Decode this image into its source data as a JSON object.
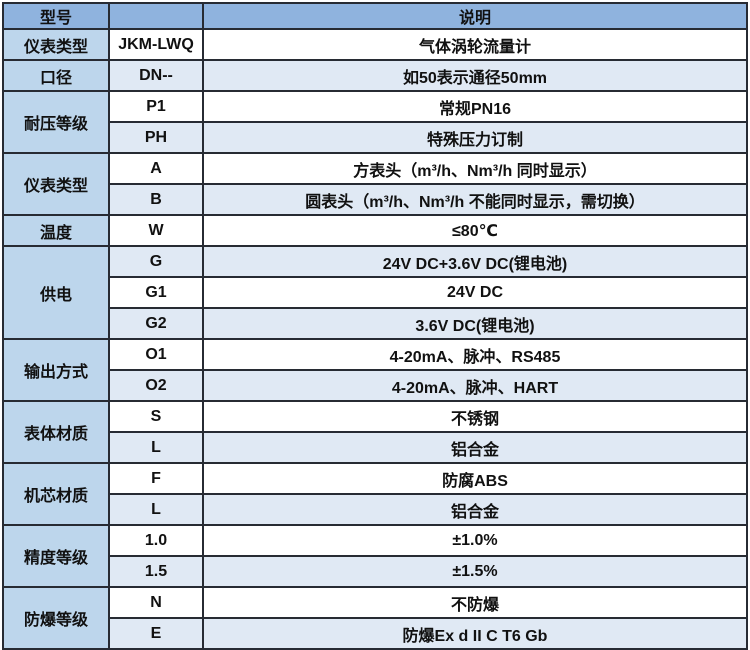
{
  "colors": {
    "header_bg": "#8FB3DE",
    "category_bg": "#BDD6EC",
    "row_even_bg": "#E0E9F4",
    "row_odd_bg": "#FFFFFF",
    "border": "#272B33",
    "text": "#111111"
  },
  "table": {
    "header": {
      "model": "型号",
      "blank": "",
      "description": "说明"
    },
    "rows": [
      {
        "cat": "仪表类型",
        "span": 1,
        "code": "JKM-LWQ",
        "desc": "气体涡轮流量计"
      },
      {
        "cat": "口径",
        "span": 1,
        "code": "DN--",
        "desc": "如50表示通径50mm"
      },
      {
        "cat": "耐压等级",
        "span": 2,
        "code": "P1",
        "desc": "常规PN16"
      },
      {
        "code": "PH",
        "desc": "特殊压力订制"
      },
      {
        "cat": "仪表类型",
        "span": 2,
        "code": "A",
        "desc": "方表头（m³/h、Nm³/h 同时显示）"
      },
      {
        "code": "B",
        "desc": "圆表头（m³/h、Nm³/h 不能同时显示，需切换）"
      },
      {
        "cat": "温度",
        "span": 1,
        "code": "W",
        "desc": "≤80℃"
      },
      {
        "cat": "供电",
        "span": 3,
        "code": "G",
        "desc": "24V DC+3.6V DC(锂电池)"
      },
      {
        "code": "G1",
        "desc": "24V DC"
      },
      {
        "code": "G2",
        "desc": "3.6V DC(锂电池)"
      },
      {
        "cat": "输出方式",
        "span": 2,
        "code": "O1",
        "desc": "4-20mA、脉冲、RS485"
      },
      {
        "code": "O2",
        "desc": "4-20mA、脉冲、HART"
      },
      {
        "cat": "表体材质",
        "span": 2,
        "code": "S",
        "desc": "不锈钢"
      },
      {
        "code": "L",
        "desc": "铝合金"
      },
      {
        "cat": "机芯材质",
        "span": 2,
        "code": "F",
        "desc": "防腐ABS"
      },
      {
        "code": "L",
        "desc": "铝合金"
      },
      {
        "cat": "精度等级",
        "span": 2,
        "code": "1.0",
        "desc": "±1.0%"
      },
      {
        "code": "1.5",
        "desc": "±1.5%"
      },
      {
        "cat": "防爆等级",
        "span": 2,
        "code": "N",
        "desc": "不防爆"
      },
      {
        "code": "E",
        "desc": "防爆Ex d II C T6 Gb"
      }
    ]
  }
}
